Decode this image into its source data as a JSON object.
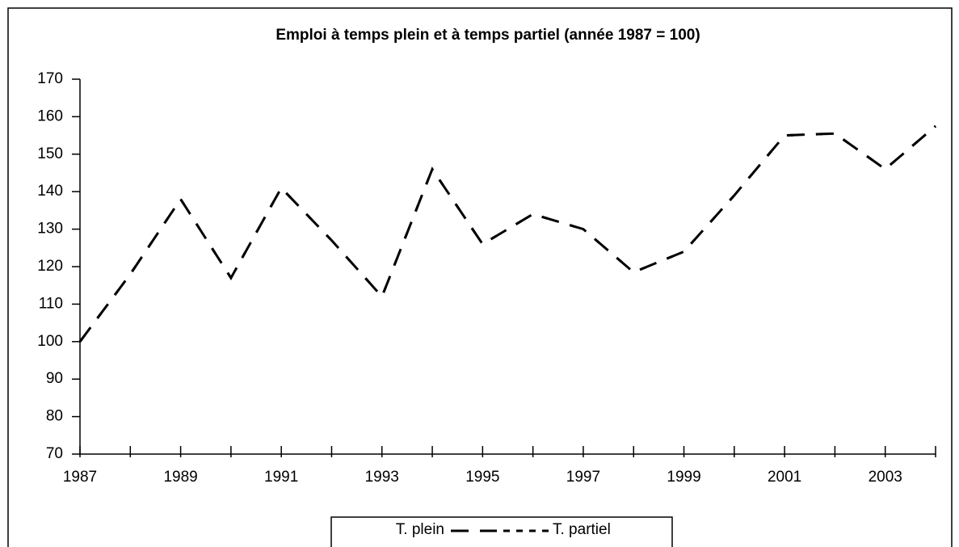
{
  "chart_data": {
    "type": "line",
    "title": "Emploi à temps plein et à temps partiel (année 1987 = 100)",
    "x": [
      1987,
      1988,
      1989,
      1990,
      1991,
      1992,
      1993,
      1994,
      1995,
      1996,
      1997,
      1998,
      1999,
      2000,
      2001,
      2002,
      2003,
      2004
    ],
    "series": [
      {
        "name": "T. plein",
        "color": "#000000",
        "values": [
          100,
          118,
          138,
          117,
          141,
          127,
          112,
          146,
          126,
          134,
          130,
          118.5,
          124,
          139,
          155,
          155.5,
          146,
          157.5
        ]
      },
      {
        "name": "T. partiel",
        "color": "#000000",
        "values": [
          100,
          118,
          138,
          117,
          141,
          127,
          112,
          146,
          126,
          134,
          130,
          118.5,
          124,
          139,
          155,
          155.5,
          146,
          157.5
        ]
      }
    ],
    "xlim": [
      1987,
      2004
    ],
    "xticks": [
      1987,
      1989,
      1991,
      1993,
      1995,
      1997,
      1999,
      2001,
      2003
    ],
    "ylim": [
      70,
      170
    ],
    "yticks": [
      70,
      80,
      90,
      100,
      110,
      120,
      130,
      140,
      150,
      160,
      170
    ],
    "legend": "bottom"
  }
}
